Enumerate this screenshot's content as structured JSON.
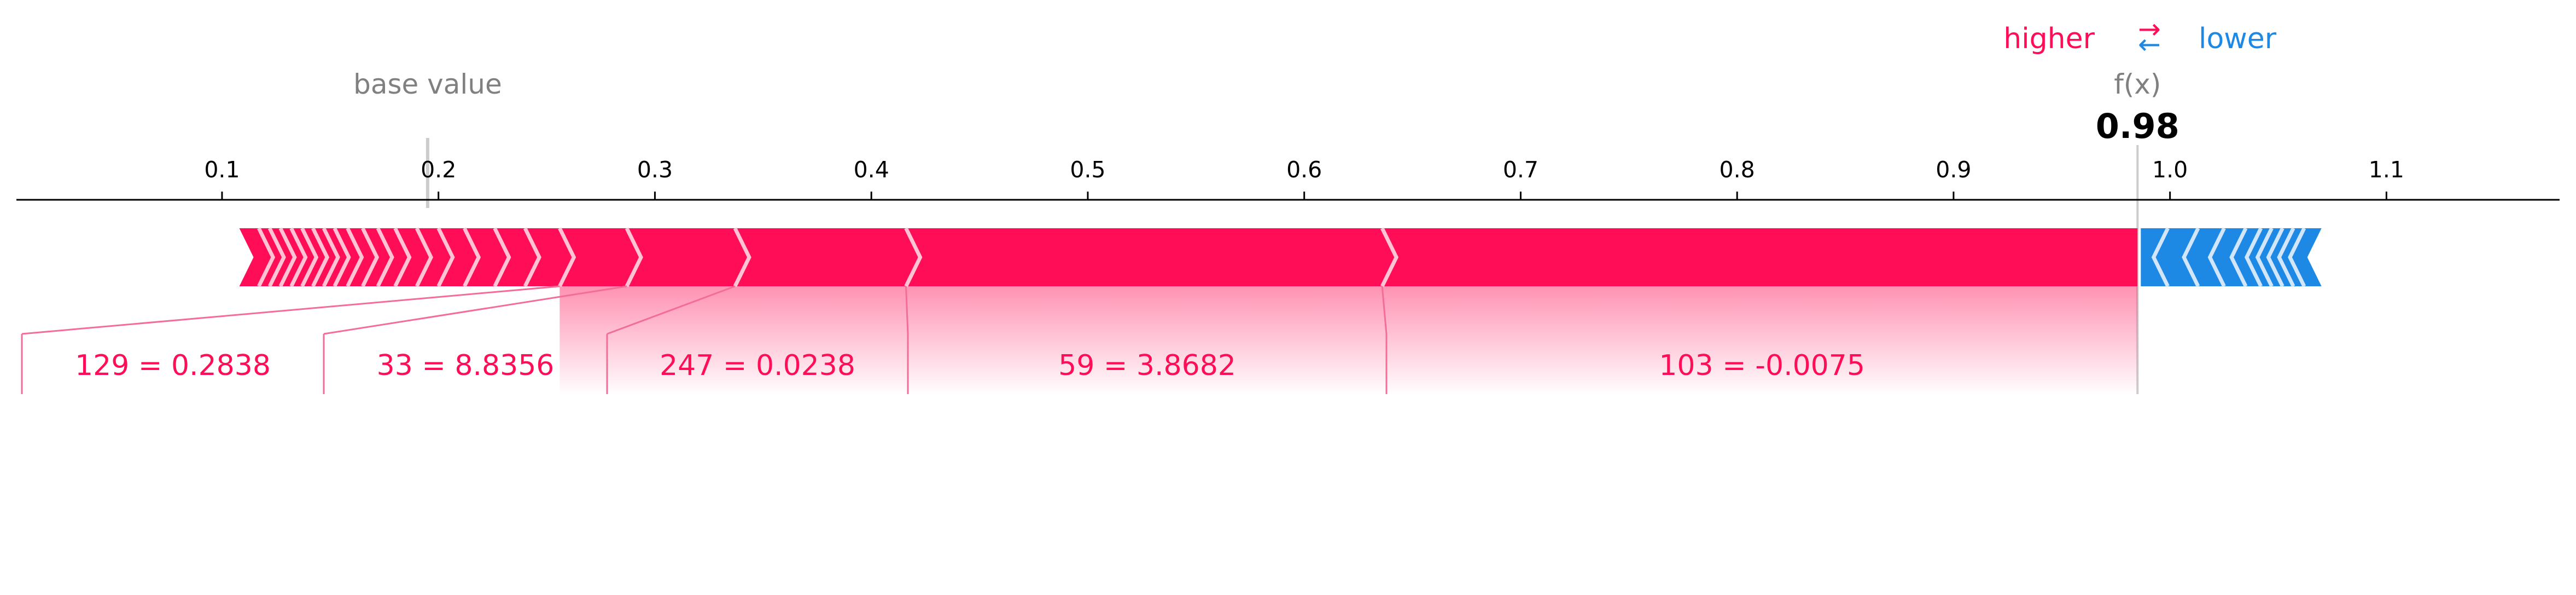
{
  "chart_data": {
    "type": "force",
    "legend": {
      "higher": "higher",
      "lower": "lower",
      "arrow_symbol": "⇄"
    },
    "base_value_label": "base value",
    "base_value": 0.195,
    "fx_label": "f(x)",
    "fx_value": 0.985,
    "fx_value_text": "0.98",
    "xlim": [
      0.005,
      1.18
    ],
    "ticks": [
      {
        "value": 0.1,
        "label": "0.1"
      },
      {
        "value": 0.2,
        "label": "0.2"
      },
      {
        "value": 0.3,
        "label": "0.3"
      },
      {
        "value": 0.4,
        "label": "0.4"
      },
      {
        "value": 0.5,
        "label": "0.5"
      },
      {
        "value": 0.6,
        "label": "0.6"
      },
      {
        "value": 0.7,
        "label": "0.7"
      },
      {
        "value": 0.8,
        "label": "0.8"
      },
      {
        "value": 0.9,
        "label": "0.9"
      },
      {
        "value": 1.0,
        "label": "1.0"
      },
      {
        "value": 1.1,
        "label": "1.1"
      }
    ],
    "positive_span": [
      0.108,
      0.985
    ],
    "negative_span": [
      0.985,
      1.07
    ],
    "positive_boundaries": [
      0.117,
      0.122,
      0.127,
      0.132,
      0.137,
      0.142,
      0.147,
      0.152,
      0.158,
      0.165,
      0.172,
      0.18,
      0.19,
      0.2,
      0.212,
      0.226,
      0.24,
      0.256,
      0.287,
      0.337,
      0.416,
      0.636
    ],
    "negative_boundaries": [
      0.999,
      1.013,
      1.025,
      1.035,
      1.042,
      1.047,
      1.052,
      1.057,
      1.062
    ],
    "labeled_features": [
      {
        "label": "129 = 0.2838",
        "seg": [
          0.256,
          0.287
        ]
      },
      {
        "label": "33 = 8.8356",
        "seg": [
          0.287,
          0.337
        ]
      },
      {
        "label": "247 = 0.0238",
        "seg": [
          0.337,
          0.416
        ]
      },
      {
        "label": "59 = 3.8682",
        "seg": [
          0.416,
          0.636
        ]
      },
      {
        "label": "103 = -0.0075",
        "seg": [
          0.636,
          0.985
        ]
      }
    ],
    "colors": {
      "positive": "#ff0d57",
      "negative": "#1e88e5",
      "axis": "#000000",
      "muted": "#808080",
      "separator_pos": "#ffc3d5",
      "separator_neg": "#d1e6fa",
      "label_line": "#f26d97"
    }
  }
}
